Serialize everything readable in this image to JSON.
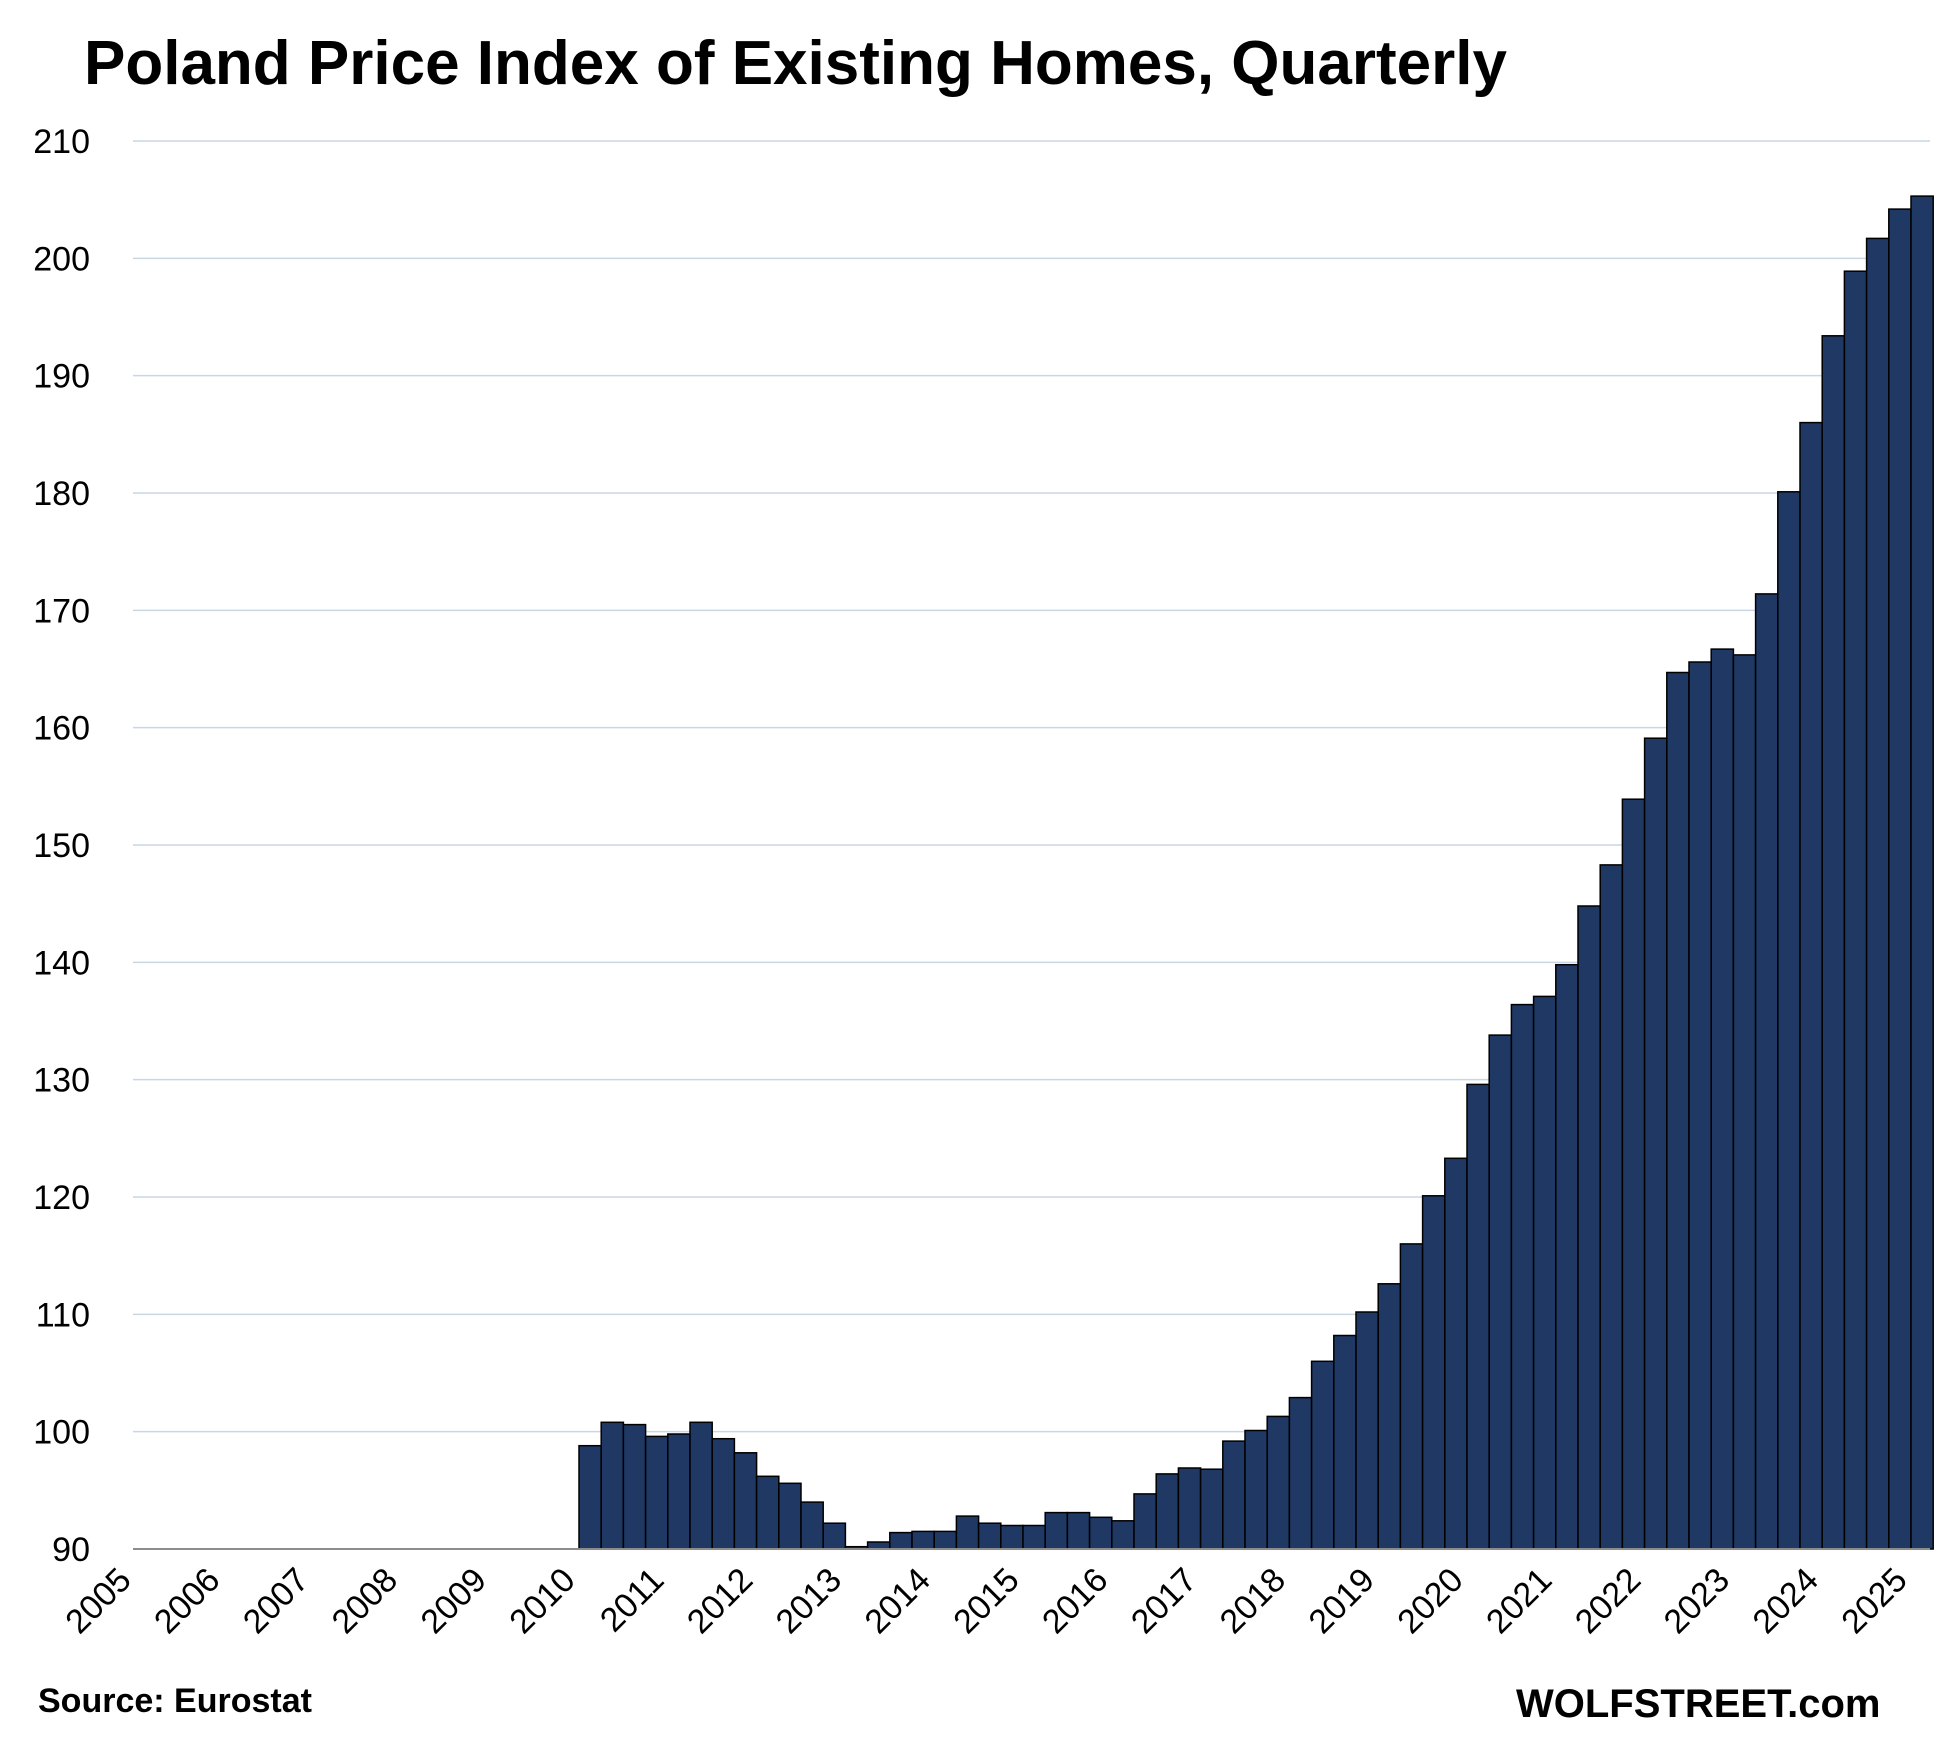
{
  "chart_data": {
    "type": "bar",
    "title": "Poland Price Index of Existing Homes, Quarterly",
    "source": "Source: Eurostat",
    "credit": "WOLFSTREET.com",
    "xlabel": "",
    "ylabel": "",
    "ylim": [
      90,
      210
    ],
    "yticks": [
      90,
      100,
      110,
      120,
      130,
      140,
      150,
      160,
      170,
      180,
      190,
      200,
      210
    ],
    "xticks": [
      "2005",
      "2006",
      "2007",
      "2008",
      "2009",
      "2010",
      "2011",
      "2012",
      "2013",
      "2014",
      "2015",
      "2016",
      "2017",
      "2018",
      "2019",
      "2020",
      "2021",
      "2022",
      "2023",
      "2024",
      "2025"
    ],
    "grid": true,
    "bar_color": "#1f3864",
    "categories": [
      "2010-Q1",
      "2010-Q2",
      "2010-Q3",
      "2010-Q4",
      "2011-Q1",
      "2011-Q2",
      "2011-Q3",
      "2011-Q4",
      "2012-Q1",
      "2012-Q2",
      "2012-Q3",
      "2012-Q4",
      "2013-Q1",
      "2013-Q2",
      "2013-Q3",
      "2013-Q4",
      "2014-Q1",
      "2014-Q2",
      "2014-Q3",
      "2014-Q4",
      "2015-Q1",
      "2015-Q2",
      "2015-Q3",
      "2015-Q4",
      "2016-Q1",
      "2016-Q2",
      "2016-Q3",
      "2016-Q4",
      "2017-Q1",
      "2017-Q2",
      "2017-Q3",
      "2017-Q4",
      "2018-Q1",
      "2018-Q2",
      "2018-Q3",
      "2018-Q4",
      "2019-Q1",
      "2019-Q2",
      "2019-Q3",
      "2019-Q4",
      "2020-Q1",
      "2020-Q2",
      "2020-Q3",
      "2020-Q4",
      "2021-Q1",
      "2021-Q2",
      "2021-Q3",
      "2021-Q4",
      "2022-Q1",
      "2022-Q2",
      "2022-Q3",
      "2022-Q4",
      "2023-Q1",
      "2023-Q2",
      "2023-Q3",
      "2023-Q4",
      "2024-Q1",
      "2024-Q2",
      "2024-Q3",
      "2024-Q4",
      "2025-Q1"
    ],
    "values": [
      98.8,
      100.8,
      100.6,
      99.6,
      99.8,
      100.8,
      99.4,
      98.2,
      96.2,
      95.6,
      94.0,
      92.2,
      90.2,
      90.6,
      91.4,
      91.5,
      91.5,
      92.8,
      92.2,
      92.0,
      92.0,
      93.1,
      93.1,
      92.7,
      92.4,
      94.7,
      96.4,
      96.9,
      96.8,
      99.2,
      100.1,
      101.3,
      102.9,
      106.0,
      108.2,
      110.2,
      112.6,
      116.0,
      120.1,
      123.3,
      129.6,
      133.8,
      136.4,
      137.1,
      139.8,
      144.8,
      148.3,
      153.9,
      159.1,
      164.7,
      165.6,
      166.7,
      166.2,
      171.4,
      180.1,
      186.0,
      193.4,
      198.9,
      201.7,
      204.2,
      205.3
    ]
  }
}
